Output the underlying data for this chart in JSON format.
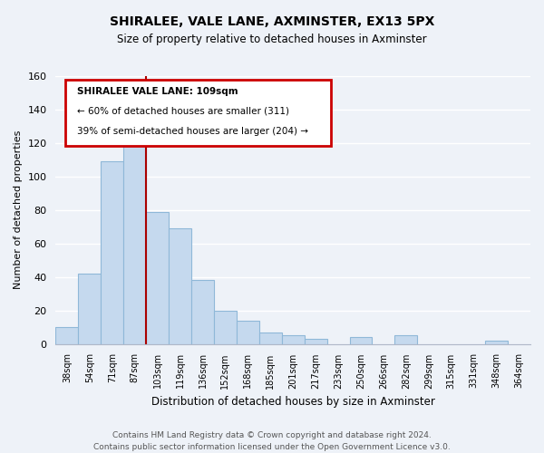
{
  "title": "SHIRALEE, VALE LANE, AXMINSTER, EX13 5PX",
  "subtitle": "Size of property relative to detached houses in Axminster",
  "xlabel": "Distribution of detached houses by size in Axminster",
  "ylabel": "Number of detached properties",
  "bar_labels": [
    "38sqm",
    "54sqm",
    "71sqm",
    "87sqm",
    "103sqm",
    "119sqm",
    "136sqm",
    "152sqm",
    "168sqm",
    "185sqm",
    "201sqm",
    "217sqm",
    "233sqm",
    "250sqm",
    "266sqm",
    "282sqm",
    "299sqm",
    "315sqm",
    "331sqm",
    "348sqm",
    "364sqm"
  ],
  "bar_values": [
    10,
    42,
    109,
    121,
    79,
    69,
    38,
    20,
    14,
    7,
    5,
    3,
    0,
    4,
    0,
    5,
    0,
    0,
    0,
    2,
    0
  ],
  "bar_color": "#c5d9ee",
  "bar_edge_color": "#8fb8d8",
  "red_line_x": 3.5,
  "ylim": [
    0,
    160
  ],
  "yticks": [
    0,
    20,
    40,
    60,
    80,
    100,
    120,
    140,
    160
  ],
  "annotation_title": "SHIRALEE VALE LANE: 109sqm",
  "annotation_line1": "← 60% of detached houses are smaller (311)",
  "annotation_line2": "39% of semi-detached houses are larger (204) →",
  "annotation_box_color": "#ffffff",
  "annotation_box_edge": "#cc0000",
  "footer_line1": "Contains HM Land Registry data © Crown copyright and database right 2024.",
  "footer_line2": "Contains public sector information licensed under the Open Government Licence v3.0.",
  "background_color": "#eef2f8",
  "plot_background": "#eef2f8",
  "grid_color": "#ffffff",
  "spine_color": "#b0b8c8"
}
